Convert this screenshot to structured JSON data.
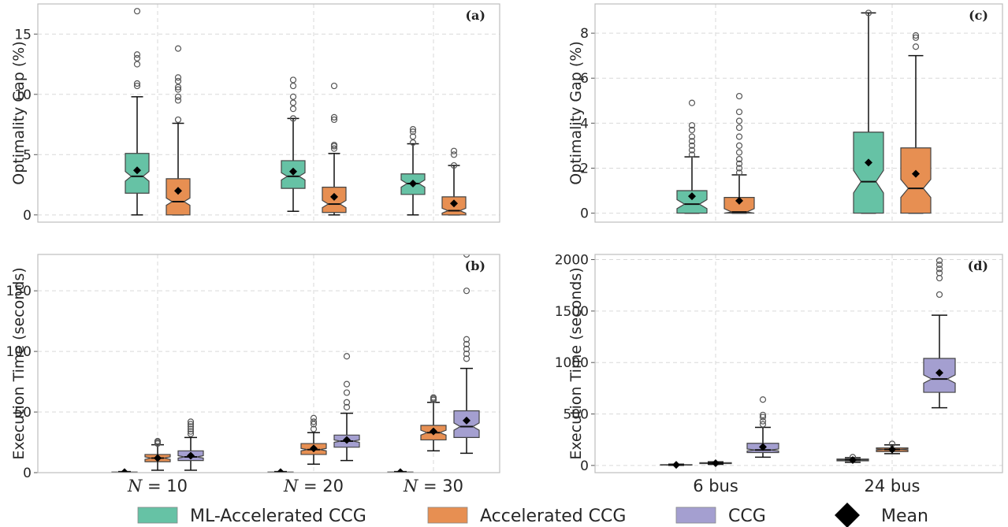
{
  "legend": {
    "items": [
      {
        "label": "ML-Accelerated CCG",
        "color": "#66c2a5"
      },
      {
        "label": "Accelerated CCG",
        "color": "#e78f52"
      },
      {
        "label": "CCG",
        "color": "#a49fd0"
      },
      {
        "label": "Mean",
        "marker": "diamond",
        "color": "#000000"
      }
    ]
  },
  "chart_data": [
    {
      "panel": "(a)",
      "type": "boxplot",
      "ylabel": "Optimality Gap (%)",
      "ylim": [
        -0.6,
        17.5
      ],
      "yticks": [
        0,
        5,
        10,
        15
      ],
      "grid": true,
      "categories": [
        "N = 10",
        "N = 20",
        "N = 30"
      ],
      "series": [
        {
          "name": "ML-Accelerated CCG",
          "color": "#66c2a5",
          "boxes": [
            {
              "min": 0,
              "q1": 1.8,
              "median": 3.2,
              "q3": 5.1,
              "max": 9.8,
              "mean": 3.7,
              "notch": [
                2.8,
                3.6
              ],
              "outliers": [
                10.7,
                10.9,
                12.5,
                13.0,
                13.3,
                16.9
              ]
            },
            {
              "min": 0.3,
              "q1": 2.2,
              "median": 3.2,
              "q3": 4.5,
              "max": 8.0,
              "mean": 3.6,
              "notch": [
                2.9,
                3.5
              ],
              "outliers": [
                8.0,
                8.8,
                9.3,
                9.8,
                10.7,
                11.2
              ]
            },
            {
              "min": 0,
              "q1": 1.7,
              "median": 2.6,
              "q3": 3.4,
              "max": 5.9,
              "mean": 2.6,
              "notch": [
                2.3,
                2.9
              ],
              "outliers": [
                6.0,
                6.5,
                6.9,
                7.1
              ]
            }
          ]
        },
        {
          "name": "Accelerated CCG",
          "color": "#e78f52",
          "boxes": [
            {
              "min": 0,
              "q1": 0,
              "median": 1.1,
              "q3": 3.0,
              "max": 7.6,
              "mean": 2.0,
              "notch": [
                0.8,
                1.4
              ],
              "outliers": [
                7.9,
                9.5,
                9.8,
                10.4,
                10.6,
                11.1,
                11.4,
                13.8
              ]
            },
            {
              "min": 0,
              "q1": 0.2,
              "median": 0.9,
              "q3": 2.3,
              "max": 5.1,
              "mean": 1.5,
              "notch": [
                0.6,
                1.2
              ],
              "outliers": [
                5.5,
                5.7,
                5.8,
                7.9,
                8.1,
                10.7
              ]
            },
            {
              "min": 0,
              "q1": 0,
              "median": 0.35,
              "q3": 1.5,
              "max": 4.1,
              "mean": 0.95,
              "notch": [
                0.15,
                0.55
              ],
              "outliers": [
                4.1,
                5.0,
                5.3
              ]
            }
          ]
        }
      ]
    },
    {
      "panel": "(b)",
      "type": "boxplot",
      "ylabel": "Execution Time (seconds)",
      "ylim": [
        0,
        180
      ],
      "yticks": [
        0,
        50,
        100,
        150
      ],
      "grid": true,
      "categories": [
        "N = 10",
        "N = 20",
        "N = 30"
      ],
      "series": [
        {
          "name": "ML-Accelerated CCG",
          "color": "#66c2a5",
          "boxes": [
            {
              "min": 0,
              "q1": 0.1,
              "median": 0.3,
              "q3": 0.5,
              "max": 0.9,
              "mean": 0.4,
              "notch": [
                0.2,
                0.4
              ],
              "outliers": []
            },
            {
              "min": 0,
              "q1": 0.1,
              "median": 0.3,
              "q3": 0.5,
              "max": 0.9,
              "mean": 0.4,
              "notch": [
                0.2,
                0.4
              ],
              "outliers": []
            },
            {
              "min": 0,
              "q1": 0.1,
              "median": 0.3,
              "q3": 0.5,
              "max": 0.9,
              "mean": 0.4,
              "notch": [
                0.2,
                0.4
              ],
              "outliers": []
            }
          ]
        },
        {
          "name": "Accelerated CCG",
          "color": "#e78f52",
          "boxes": [
            {
              "min": 2,
              "q1": 9,
              "median": 12,
              "q3": 15,
              "max": 23,
              "mean": 12,
              "notch": [
                11,
                13
              ],
              "outliers": [
                24,
                25,
                26
              ]
            },
            {
              "min": 7,
              "q1": 15,
              "median": 19,
              "q3": 24,
              "max": 33,
              "mean": 20,
              "notch": [
                18,
                20
              ],
              "outliers": [
                36,
                40,
                42,
                45
              ]
            },
            {
              "min": 18,
              "q1": 27,
              "median": 33,
              "q3": 39,
              "max": 58,
              "mean": 34,
              "notch": [
                31,
                35
              ],
              "outliers": [
                60,
                61,
                62
              ]
            }
          ]
        },
        {
          "name": "CCG",
          "color": "#a49fd0",
          "boxes": [
            {
              "min": 2,
              "q1": 10,
              "median": 13,
              "q3": 18,
              "max": 29,
              "mean": 14,
              "notch": [
                12,
                14
              ],
              "outliers": [
                32,
                34,
                36,
                38,
                40,
                42
              ]
            },
            {
              "min": 10,
              "q1": 21,
              "median": 26,
              "q3": 31,
              "max": 49,
              "mean": 27,
              "notch": [
                25,
                27
              ],
              "outliers": [
                54,
                58,
                66,
                73,
                96
              ]
            },
            {
              "min": 16,
              "q1": 29,
              "median": 38,
              "q3": 51,
              "max": 86,
              "mean": 43,
              "notch": [
                35,
                41
              ],
              "outliers": [
                94,
                98,
                102,
                106,
                110,
                150,
                180
              ]
            }
          ]
        }
      ]
    },
    {
      "panel": "(c)",
      "type": "boxplot",
      "ylabel": "Optimality Gap (%)",
      "ylim": [
        -0.4,
        9.3
      ],
      "yticks": [
        0,
        2,
        4,
        6,
        8
      ],
      "grid": true,
      "categories": [
        "6 bus",
        "24 bus"
      ],
      "series": [
        {
          "name": "ML-Accelerated CCG",
          "color": "#66c2a5",
          "boxes": [
            {
              "min": 0,
              "q1": 0,
              "median": 0.4,
              "q3": 1.0,
              "max": 2.5,
              "mean": 0.75,
              "notch": [
                0.2,
                0.6
              ],
              "outliers": [
                2.6,
                2.8,
                3.0,
                3.2,
                3.4,
                3.7,
                3.9,
                4.9
              ]
            },
            {
              "min": 0,
              "q1": 0,
              "median": 1.4,
              "q3": 3.6,
              "max": 8.9,
              "mean": 2.25,
              "notch": [
                0.9,
                1.9
              ],
              "outliers": [
                8.9
              ]
            }
          ]
        },
        {
          "name": "Accelerated CCG",
          "color": "#e78f52",
          "boxes": [
            {
              "min": 0,
              "q1": 0,
              "median": 0.05,
              "q3": 0.7,
              "max": 1.7,
              "mean": 0.55,
              "notch": [
                -0.1,
                0.2
              ],
              "outliers": [
                1.8,
                2.0,
                2.2,
                2.4,
                2.7,
                3.0,
                3.4,
                3.8,
                4.1,
                4.5,
                5.2
              ]
            },
            {
              "min": 0,
              "q1": 0,
              "median": 1.1,
              "q3": 2.9,
              "max": 7.0,
              "mean": 1.75,
              "notch": [
                0.7,
                1.5
              ],
              "outliers": [
                7.4,
                7.8,
                7.9
              ]
            }
          ]
        }
      ]
    },
    {
      "panel": "(d)",
      "type": "boxplot",
      "ylabel": "Execution Time (seconds)",
      "ylim": [
        -70,
        2050
      ],
      "yticks": [
        0,
        500,
        1000,
        1500,
        2000
      ],
      "grid": true,
      "categories": [
        "6 bus",
        "24 bus"
      ],
      "series": [
        {
          "name": "ML-Accelerated CCG",
          "color": "#66c2a5",
          "boxes": [
            {
              "min": 2,
              "q1": 3,
              "median": 5,
              "q3": 8,
              "max": 12,
              "mean": 6,
              "notch": [
                4,
                6
              ],
              "outliers": []
            },
            {
              "min": 30,
              "q1": 45,
              "median": 55,
              "q3": 62,
              "max": 75,
              "mean": 52,
              "notch": [
                52,
                58
              ],
              "outliers": [
                80
              ]
            }
          ]
        },
        {
          "name": "Accelerated CCG",
          "color": "#e78f52",
          "boxes": [
            {
              "min": 10,
              "q1": 18,
              "median": 22,
              "q3": 27,
              "max": 35,
              "mean": 22,
              "notch": [
                20,
                24
              ],
              "outliers": []
            },
            {
              "min": 115,
              "q1": 135,
              "median": 155,
              "q3": 170,
              "max": 200,
              "mean": 155,
              "notch": [
                150,
                160
              ],
              "outliers": [
                210
              ]
            }
          ]
        },
        {
          "name": "CCG",
          "color": "#a49fd0",
          "boxes": [
            {
              "min": 80,
              "q1": 125,
              "median": 150,
              "q3": 215,
              "max": 370,
              "mean": 180,
              "notch": [
                140,
                160
              ],
              "outliers": [
                400,
                430,
                470,
                490,
                640
              ]
            },
            {
              "min": 560,
              "q1": 710,
              "median": 840,
              "q3": 1040,
              "max": 1460,
              "mean": 900,
              "notch": [
                800,
                880
              ],
              "outliers": [
                1660,
                1820,
                1870,
                1910,
                1950,
                1990
              ]
            }
          ]
        }
      ]
    }
  ]
}
